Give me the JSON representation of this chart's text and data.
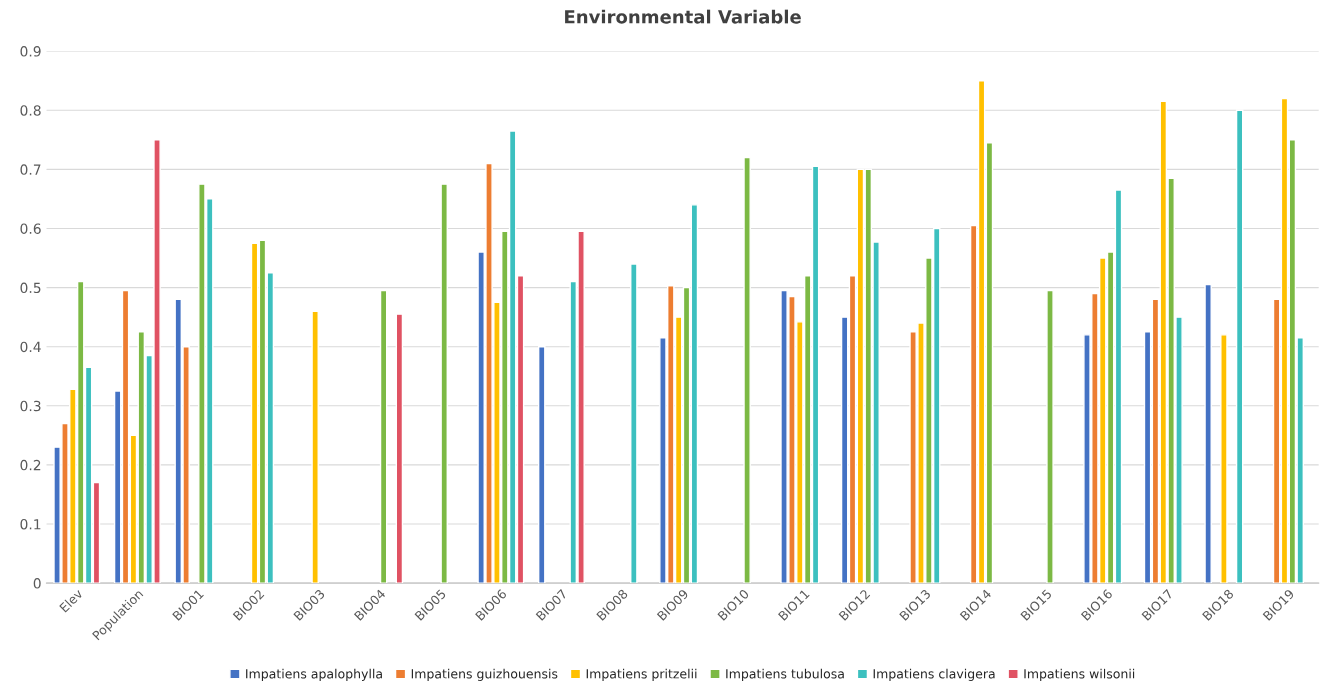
{
  "chart_data": {
    "type": "bar",
    "title": "Environmental Variable",
    "categories": [
      "Elev",
      "Population",
      "BIO01",
      "BIO02",
      "BIO03",
      "BIO04",
      "BIO05",
      "BIO06",
      "BIO07",
      "BIO08",
      "BIO09",
      "BIO10",
      "BIO11",
      "BIO12",
      "BIO13",
      "BIO14",
      "BIO15",
      "BIO16",
      "BIO17",
      "BIO18",
      "BIO19"
    ],
    "series": [
      {
        "name": "Impatiens apalophylla",
        "color": "#4472c4",
        "values": [
          0.23,
          0.325,
          0.48,
          null,
          null,
          null,
          null,
          0.56,
          0.4,
          null,
          0.415,
          null,
          0.495,
          0.45,
          null,
          null,
          null,
          0.42,
          0.425,
          0.505,
          null
        ]
      },
      {
        "name": "Impatiens guizhouensis",
        "color": "#ed7d31",
        "values": [
          0.27,
          0.495,
          0.4,
          null,
          null,
          null,
          null,
          0.71,
          null,
          null,
          0.503,
          null,
          0.485,
          0.52,
          0.425,
          0.605,
          null,
          0.49,
          0.48,
          null,
          0.48
        ]
      },
      {
        "name": "Impatiens pritzelii",
        "color": "#ffc000",
        "values": [
          0.328,
          0.25,
          null,
          0.575,
          0.46,
          null,
          null,
          0.475,
          null,
          null,
          0.45,
          null,
          0.442,
          0.7,
          0.44,
          0.85,
          null,
          0.55,
          0.815,
          0.42,
          0.82
        ]
      },
      {
        "name": "Impatiens tubulosa",
        "color": "#7cb944",
        "values": [
          0.51,
          0.425,
          0.675,
          0.58,
          null,
          0.495,
          0.675,
          0.595,
          null,
          null,
          0.5,
          0.72,
          0.52,
          0.7,
          0.55,
          0.745,
          0.495,
          0.56,
          0.685,
          null,
          0.75
        ]
      },
      {
        "name": "Impatiens clavigera",
        "color": "#3cc0bf",
        "values": [
          0.365,
          0.385,
          0.65,
          0.525,
          null,
          null,
          null,
          0.765,
          0.51,
          0.54,
          0.64,
          null,
          0.705,
          0.577,
          0.6,
          null,
          null,
          0.665,
          0.45,
          0.8,
          0.415
        ]
      },
      {
        "name": "Impatiens wilsonii",
        "color": "#e05263",
        "values": [
          0.17,
          0.75,
          null,
          null,
          null,
          0.455,
          null,
          0.52,
          0.595,
          null,
          null,
          null,
          null,
          null,
          null,
          null,
          null,
          null,
          null,
          null,
          null
        ]
      }
    ],
    "ylim": [
      0,
      0.9
    ],
    "yticks": [
      0,
      0.1,
      0.2,
      0.3,
      0.4,
      0.5,
      0.6,
      0.7,
      0.8,
      0.9
    ],
    "grid": "y",
    "legend": "bottom"
  }
}
